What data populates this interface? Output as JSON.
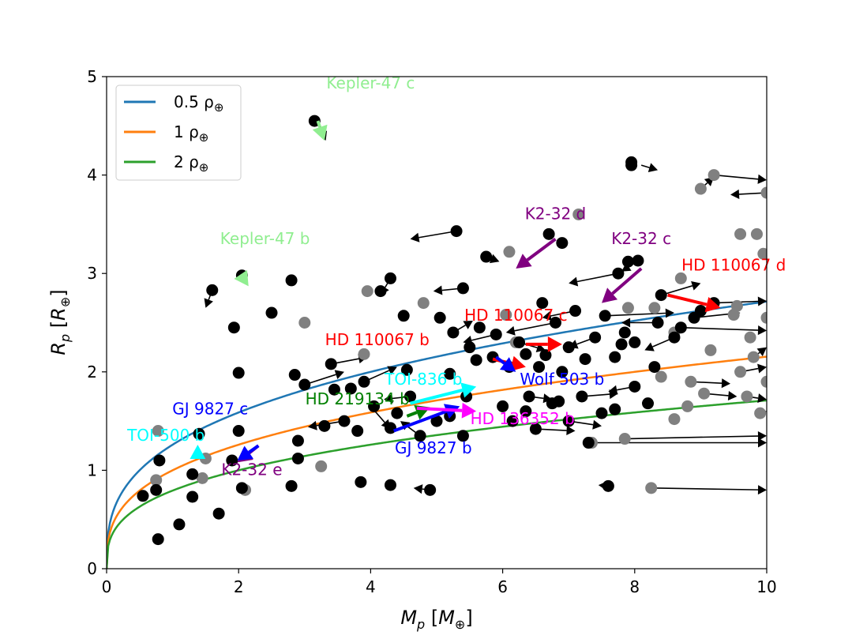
{
  "chart_data": {
    "type": "scatter",
    "title": "",
    "xlabel": "M_p [M_⊕]",
    "ylabel": "R_p [R_⊕]",
    "xlabel_parts": {
      "sym": "M",
      "sub": "p",
      "unit": "M",
      "unit_sub": "⊕"
    },
    "ylabel_parts": {
      "sym": "R",
      "sub": "p",
      "unit": "R",
      "unit_sub": "⊕"
    },
    "xlim": [
      0,
      10
    ],
    "ylim": [
      0,
      5
    ],
    "xticks": [
      0,
      2,
      4,
      6,
      8,
      10
    ],
    "yticks": [
      0,
      1,
      2,
      3,
      4,
      5
    ],
    "legend": {
      "position": "top-left",
      "entries": [
        {
          "label": "0.5 ρ",
          "sub": "⊕",
          "color": "#1f77b4"
        },
        {
          "label": "1 ρ",
          "sub": "⊕",
          "color": "#ff7f0e"
        },
        {
          "label": "2 ρ",
          "sub": "⊕",
          "color": "#2ca02c"
        }
      ]
    },
    "density_curves": [
      {
        "name": "0.5 ρ⊕",
        "density_factor": 0.5,
        "color": "#1f77b4"
      },
      {
        "name": "1 ρ⊕",
        "density_factor": 1.0,
        "color": "#ff7f0e"
      },
      {
        "name": "2 ρ⊕",
        "density_factor": 2.0,
        "color": "#2ca02c"
      }
    ],
    "highlighted_planets": [
      {
        "name": "Kepler-47 c",
        "color": "#90ee90",
        "from": [
          3.2,
          4.55
        ],
        "to": [
          3.3,
          4.35
        ],
        "label_at": [
          4.0,
          4.88
        ]
      },
      {
        "name": "Kepler-47 b",
        "color": "#90ee90",
        "from": [
          2.05,
          2.97
        ],
        "to": [
          2.15,
          2.87
        ],
        "label_at": [
          2.4,
          3.3
        ]
      },
      {
        "name": "K2-32 d",
        "color": "#800080",
        "from": [
          6.8,
          3.35
        ],
        "to": [
          6.2,
          3.05
        ],
        "label_at": [
          6.8,
          3.55
        ]
      },
      {
        "name": "K2-32 c",
        "color": "#800080",
        "from": [
          8.1,
          3.05
        ],
        "to": [
          7.5,
          2.7
        ],
        "label_at": [
          8.1,
          3.3
        ]
      },
      {
        "name": "K2-32 e",
        "color": "#800080",
        "from": [
          2.3,
          1.25
        ],
        "to": [
          1.98,
          1.08
        ],
        "label_at": [
          2.2,
          0.95
        ]
      },
      {
        "name": "HD 110067 d",
        "color": "#ff0000",
        "from": [
          8.5,
          2.78
        ],
        "to": [
          9.3,
          2.65
        ],
        "label_at": [
          9.5,
          3.03
        ]
      },
      {
        "name": "HD 110067 c",
        "color": "#ff0000",
        "from": [
          6.35,
          2.28
        ],
        "to": [
          6.9,
          2.28
        ],
        "label_at": [
          6.2,
          2.52
        ]
      },
      {
        "name": "HD 110067 b",
        "color": "#ff0000",
        "from": [
          5.85,
          2.13
        ],
        "to": [
          6.35,
          2.05
        ],
        "label_at": [
          4.1,
          2.27
        ]
      },
      {
        "name": "Wolf 503 b",
        "color": "#0000ff",
        "from": [
          5.9,
          2.15
        ],
        "to": [
          6.2,
          2.0
        ],
        "label_at": [
          6.9,
          1.87
        ]
      },
      {
        "name": "GJ 9827 c",
        "color": "#0000ff",
        "from": [
          2.3,
          1.25
        ],
        "to": [
          1.98,
          1.1
        ],
        "label_at": [
          1.57,
          1.57
        ]
      },
      {
        "name": "GJ 9827 b",
        "color": "#0000ff",
        "from": [
          4.35,
          1.4
        ],
        "to": [
          5.35,
          1.65
        ],
        "label_at": [
          4.95,
          1.17
        ]
      },
      {
        "name": "TOI-836 b",
        "color": "#00ffff",
        "from": [
          4.6,
          1.68
        ],
        "to": [
          5.6,
          1.85
        ],
        "label_at": [
          4.8,
          1.87
        ]
      },
      {
        "name": "TOI-500 b",
        "color": "#00ffff",
        "from": [
          1.38,
          1.12
        ],
        "to": [
          1.38,
          1.26
        ],
        "label_at": [
          0.9,
          1.3
        ]
      },
      {
        "name": "HD 219134 b",
        "color": "#008000",
        "from": [
          4.55,
          1.55
        ],
        "to": [
          4.9,
          1.64
        ],
        "label_at": [
          3.8,
          1.67
        ]
      },
      {
        "name": "HD 136352 b",
        "color": "#ff00ff",
        "from": [
          4.7,
          1.63
        ],
        "to": [
          5.6,
          1.6
        ],
        "label_at": [
          6.3,
          1.47
        ]
      }
    ],
    "known_planets_black": [
      [
        0.55,
        0.74
      ],
      [
        0.75,
        0.8
      ],
      [
        0.78,
        0.3
      ],
      [
        0.8,
        1.1
      ],
      [
        1.1,
        0.45
      ],
      [
        1.3,
        0.73
      ],
      [
        1.3,
        0.96
      ],
      [
        1.4,
        1.37
      ],
      [
        1.7,
        0.56
      ],
      [
        1.9,
        1.1
      ],
      [
        1.93,
        2.45
      ],
      [
        2.0,
        1.4
      ],
      [
        2.0,
        1.99
      ],
      [
        2.05,
        0.82
      ],
      [
        2.05,
        2.98
      ],
      [
        1.6,
        2.83
      ],
      [
        2.5,
        2.6
      ],
      [
        2.8,
        0.84
      ],
      [
        2.8,
        2.93
      ],
      [
        2.85,
        1.97
      ],
      [
        2.9,
        1.12
      ],
      [
        2.9,
        1.3
      ],
      [
        3.0,
        1.87
      ],
      [
        3.15,
        4.55
      ],
      [
        3.3,
        1.45
      ],
      [
        3.4,
        2.08
      ],
      [
        3.45,
        1.82
      ],
      [
        3.6,
        1.5
      ],
      [
        3.7,
        1.83
      ],
      [
        3.8,
        1.4
      ],
      [
        3.85,
        0.88
      ],
      [
        3.9,
        1.9
      ],
      [
        4.05,
        1.65
      ],
      [
        4.15,
        2.82
      ],
      [
        4.3,
        0.85
      ],
      [
        4.3,
        1.43
      ],
      [
        4.3,
        2.95
      ],
      [
        4.4,
        1.58
      ],
      [
        4.5,
        2.57
      ],
      [
        4.55,
        2.02
      ],
      [
        4.6,
        1.75
      ],
      [
        4.75,
        1.35
      ],
      [
        4.9,
        0.8
      ],
      [
        5.0,
        1.5
      ],
      [
        5.05,
        2.55
      ],
      [
        5.2,
        1.55
      ],
      [
        5.2,
        1.98
      ],
      [
        5.25,
        2.4
      ],
      [
        5.3,
        3.43
      ],
      [
        5.4,
        1.35
      ],
      [
        5.4,
        2.85
      ],
      [
        5.45,
        1.75
      ],
      [
        5.5,
        2.25
      ],
      [
        5.6,
        2.12
      ],
      [
        5.65,
        2.45
      ],
      [
        5.75,
        3.17
      ],
      [
        5.85,
        2.15
      ],
      [
        5.9,
        2.38
      ],
      [
        6.0,
        1.65
      ],
      [
        6.1,
        2.05
      ],
      [
        6.15,
        1.5
      ],
      [
        6.25,
        2.3
      ],
      [
        6.35,
        1.6
      ],
      [
        6.35,
        2.18
      ],
      [
        6.4,
        1.75
      ],
      [
        6.5,
        1.42
      ],
      [
        6.55,
        2.05
      ],
      [
        6.6,
        2.7
      ],
      [
        6.65,
        2.17
      ],
      [
        6.7,
        3.4
      ],
      [
        6.75,
        1.68
      ],
      [
        6.8,
        2.5
      ],
      [
        6.85,
        1.7
      ],
      [
        6.9,
        2.0
      ],
      [
        6.9,
        3.31
      ],
      [
        7.0,
        1.5
      ],
      [
        7.0,
        2.25
      ],
      [
        7.1,
        2.62
      ],
      [
        7.2,
        1.75
      ],
      [
        7.25,
        2.13
      ],
      [
        7.3,
        1.28
      ],
      [
        7.4,
        2.35
      ],
      [
        7.5,
        1.58
      ],
      [
        7.55,
        2.57
      ],
      [
        7.6,
        0.84
      ],
      [
        7.7,
        1.62
      ],
      [
        7.7,
        2.15
      ],
      [
        7.75,
        3.0
      ],
      [
        7.8,
        2.28
      ],
      [
        7.85,
        2.4
      ],
      [
        7.9,
        3.12
      ],
      [
        7.95,
        4.13
      ],
      [
        7.95,
        4.1
      ],
      [
        8.0,
        1.85
      ],
      [
        8.0,
        2.3
      ],
      [
        8.05,
        3.13
      ],
      [
        8.2,
        1.68
      ],
      [
        8.3,
        2.05
      ],
      [
        8.35,
        2.5
      ],
      [
        8.4,
        2.78
      ],
      [
        8.6,
        2.35
      ],
      [
        8.7,
        2.45
      ],
      [
        8.9,
        2.55
      ],
      [
        9.0,
        2.62
      ],
      [
        9.2,
        2.7
      ]
    ],
    "known_planets_gray": [
      [
        0.78,
        1.4
      ],
      [
        0.75,
        0.9
      ],
      [
        1.45,
        0.92
      ],
      [
        1.5,
        1.12
      ],
      [
        2.1,
        0.8
      ],
      [
        3.0,
        2.5
      ],
      [
        3.25,
        1.04
      ],
      [
        3.9,
        2.18
      ],
      [
        3.95,
        2.82
      ],
      [
        4.8,
        2.7
      ],
      [
        6.1,
        3.22
      ],
      [
        6.05,
        2.58
      ],
      [
        6.2,
        2.3
      ],
      [
        7.15,
        3.6
      ],
      [
        7.35,
        1.28
      ],
      [
        7.85,
        1.32
      ],
      [
        7.9,
        2.65
      ],
      [
        8.25,
        0.82
      ],
      [
        8.3,
        2.65
      ],
      [
        8.4,
        1.95
      ],
      [
        8.6,
        1.52
      ],
      [
        8.6,
        2.4
      ],
      [
        8.7,
        2.95
      ],
      [
        8.8,
        1.65
      ],
      [
        8.85,
        1.9
      ],
      [
        9.0,
        3.86
      ],
      [
        9.05,
        1.78
      ],
      [
        9.15,
        2.22
      ],
      [
        9.2,
        4.0
      ],
      [
        9.5,
        2.58
      ],
      [
        9.55,
        2.67
      ],
      [
        9.6,
        2.0
      ],
      [
        9.6,
        3.4
      ],
      [
        9.7,
        1.75
      ],
      [
        9.75,
        2.35
      ],
      [
        9.8,
        2.15
      ],
      [
        9.85,
        3.4
      ],
      [
        9.9,
        1.58
      ],
      [
        9.95,
        3.2
      ],
      [
        10.0,
        3.82
      ],
      [
        10.0,
        2.55
      ],
      [
        10.0,
        1.9
      ]
    ],
    "arrows_black": [
      [
        3.2,
        4.55,
        3.32,
        4.35
      ],
      [
        8.1,
        4.1,
        8.35,
        4.05
      ],
      [
        5.3,
        3.43,
        4.6,
        3.35
      ],
      [
        1.6,
        2.83,
        1.5,
        2.65
      ],
      [
        4.3,
        2.95,
        4.15,
        2.78
      ],
      [
        5.4,
        2.85,
        4.95,
        2.82
      ],
      [
        5.75,
        3.17,
        5.95,
        3.12
      ],
      [
        3.0,
        1.87,
        3.6,
        2.0
      ],
      [
        3.4,
        2.08,
        3.95,
        2.15
      ],
      [
        3.9,
        1.9,
        4.4,
        2.05
      ],
      [
        4.6,
        1.75,
        4.2,
        1.72
      ],
      [
        4.0,
        1.65,
        4.3,
        1.42
      ],
      [
        4.9,
        0.8,
        4.65,
        0.82
      ],
      [
        3.6,
        1.5,
        3.05,
        1.44
      ],
      [
        4.75,
        1.35,
        4.45,
        1.5
      ],
      [
        5.25,
        2.4,
        5.55,
        2.52
      ],
      [
        5.9,
        2.38,
        5.4,
        2.3
      ],
      [
        6.4,
        1.75,
        6.75,
        1.72
      ],
      [
        7.0,
        1.5,
        7.5,
        1.45
      ],
      [
        7.2,
        1.75,
        7.75,
        1.78
      ],
      [
        7.4,
        2.35,
        7.0,
        2.25
      ],
      [
        7.75,
        3.0,
        7.0,
        2.9
      ],
      [
        7.6,
        0.84,
        7.45,
        0.85
      ],
      [
        8.0,
        1.85,
        7.6,
        1.8
      ],
      [
        8.05,
        3.13,
        7.8,
        3.02
      ],
      [
        8.35,
        2.5,
        7.8,
        2.5
      ],
      [
        8.4,
        2.78,
        9.0,
        2.9
      ],
      [
        8.6,
        2.35,
        8.15,
        2.22
      ],
      [
        8.9,
        2.55,
        9.6,
        2.6
      ],
      [
        9.0,
        3.86,
        9.2,
        3.98
      ],
      [
        9.2,
        4.0,
        10.0,
        3.95
      ],
      [
        10.0,
        3.82,
        9.45,
        3.8
      ],
      [
        9.05,
        1.78,
        9.55,
        1.75
      ],
      [
        8.85,
        1.9,
        9.45,
        1.88
      ],
      [
        8.25,
        0.82,
        10.0,
        0.8
      ],
      [
        7.35,
        1.28,
        10.0,
        1.28
      ],
      [
        6.5,
        1.42,
        7.1,
        1.4
      ],
      [
        7.85,
        1.32,
        10.0,
        1.35
      ],
      [
        6.25,
        2.3,
        6.65,
        2.22
      ],
      [
        6.8,
        2.5,
        6.05,
        2.4
      ],
      [
        7.1,
        2.62,
        6.6,
        2.55
      ],
      [
        7.55,
        2.57,
        8.6,
        2.6
      ],
      [
        8.7,
        2.45,
        10.0,
        2.42
      ],
      [
        9.2,
        2.7,
        10.0,
        2.72
      ],
      [
        9.6,
        2.0,
        10.0,
        2.05
      ],
      [
        9.8,
        2.15,
        10.0,
        2.25
      ],
      [
        9.9,
        1.58,
        10.0,
        1.6
      ],
      [
        9.7,
        1.75,
        10.0,
        1.72
      ]
    ]
  }
}
